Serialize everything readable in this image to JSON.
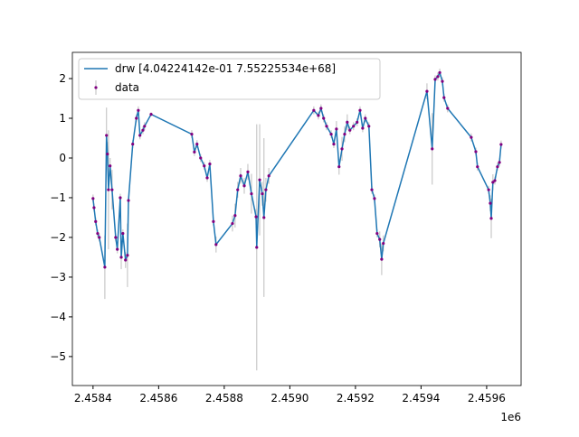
{
  "chart_data": {
    "type": "line",
    "x_offset_label": "1e6",
    "x": [
      2458400,
      2458403,
      2458408,
      2458414,
      2458419,
      2458436,
      2458441,
      2458444,
      2458447,
      2458452,
      2458458,
      2458469,
      2458474,
      2458483,
      2458486,
      2458491,
      2458499,
      2458505,
      2458508,
      2458521,
      2458532,
      2458538,
      2458543,
      2458552,
      2458557,
      2458577,
      2458701,
      2458709,
      2458717,
      2458728,
      2458739,
      2458748,
      2458756,
      2458767,
      2458775,
      2458825,
      2458833,
      2458841,
      2458850,
      2458861,
      2458872,
      2458883,
      2458897,
      2458899,
      2458908,
      2458916,
      2458921,
      2458927,
      2458936,
      2459073,
      2459087,
      2459095,
      2459103,
      2459112,
      2459126,
      2459134,
      2459142,
      2459150,
      2459159,
      2459167,
      2459175,
      2459183,
      2459194,
      2459205,
      2459214,
      2459222,
      2459230,
      2459241,
      2459250,
      2459258,
      2459266,
      2459274,
      2459280,
      2459285,
      2459418,
      2459434,
      2459443,
      2459451,
      2459457,
      2459465,
      2459470,
      2459481,
      2459553,
      2459567,
      2459572,
      2459606,
      2459611,
      2459614,
      2459619,
      2459625,
      2459633,
      2459639,
      2459644
    ],
    "series": [
      {
        "name": "drw [4.04224142e-01 7.55225534e+68]",
        "color": "#1f77b4",
        "values": [
          -1.02,
          -1.25,
          -1.6,
          -1.9,
          -2.0,
          -2.75,
          0.57,
          0.1,
          -0.8,
          -0.2,
          -0.8,
          -2.0,
          -2.3,
          -1.0,
          -2.5,
          -1.9,
          -2.57,
          -2.45,
          -1.07,
          0.35,
          1.0,
          1.2,
          0.57,
          0.7,
          0.8,
          1.1,
          0.6,
          0.15,
          0.35,
          0,
          -0.2,
          -0.5,
          -0.15,
          -1.6,
          -2.18,
          -1.65,
          -1.45,
          -0.8,
          -0.45,
          -0.7,
          -0.35,
          -0.9,
          -1.48,
          -2.25,
          -0.55,
          -0.9,
          -1.5,
          -0.8,
          -0.45,
          1.2,
          1.07,
          1.25,
          1.0,
          0.8,
          0.6,
          0.35,
          0.73,
          -0.22,
          0.23,
          0.6,
          0.9,
          0.7,
          0.8,
          0.9,
          1.2,
          0.75,
          1.0,
          0.8,
          -0.8,
          -1.02,
          -1.9,
          -2.05,
          -2.55,
          -2.15,
          1.68,
          0.23,
          1.98,
          2.05,
          2.15,
          1.93,
          1.52,
          1.25,
          0.52,
          0.16,
          -0.22,
          -0.8,
          -1.14,
          -1.52,
          -0.61,
          -0.57,
          -0.22,
          -0.11,
          0.34
        ]
      },
      {
        "name": "data",
        "color": "#800080",
        "error_color": "#c8c8c8",
        "values": [
          -1.02,
          -1.25,
          -1.6,
          -1.9,
          -2.0,
          -2.75,
          0.57,
          0.1,
          -0.8,
          -0.2,
          -0.8,
          -2.0,
          -2.3,
          -1.0,
          -2.5,
          -1.9,
          -2.57,
          -2.45,
          -1.07,
          0.35,
          1.0,
          1.2,
          0.57,
          0.7,
          0.8,
          1.1,
          0.6,
          0.15,
          0.35,
          0,
          -0.2,
          -0.5,
          -0.15,
          -1.6,
          -2.18,
          -1.65,
          -1.45,
          -0.8,
          -0.45,
          -0.7,
          -0.35,
          -0.9,
          -1.48,
          -2.25,
          -0.55,
          -0.9,
          -1.5,
          -0.8,
          -0.45,
          1.2,
          1.07,
          1.25,
          1.0,
          0.8,
          0.6,
          0.35,
          0.73,
          -0.22,
          0.23,
          0.6,
          0.9,
          0.7,
          0.8,
          0.9,
          1.2,
          0.75,
          1.0,
          0.8,
          -0.8,
          -1.02,
          -1.9,
          -2.05,
          -2.55,
          -2.15,
          1.68,
          0.23,
          1.98,
          2.05,
          2.15,
          1.93,
          1.52,
          1.25,
          0.52,
          0.16,
          -0.22,
          -0.8,
          -1.14,
          -1.52,
          -0.61,
          -0.57,
          -0.22,
          -0.11,
          0.34
        ],
        "errors": [
          0.1,
          0.1,
          0.1,
          0.1,
          0.1,
          0.8,
          0.7,
          0.3,
          1.5,
          0.2,
          0.5,
          0.1,
          0.1,
          0.1,
          0.3,
          0.1,
          0.2,
          0.8,
          0.1,
          0.1,
          0.1,
          0.1,
          0.1,
          0.1,
          0.1,
          0.05,
          0.1,
          0.1,
          0.1,
          0.1,
          0.1,
          0.1,
          0.1,
          0.1,
          0.2,
          0.2,
          0.3,
          0.2,
          0.2,
          0.2,
          0.2,
          0.5,
          0.2,
          3.1,
          1.4,
          0.3,
          2.0,
          0.3,
          0.2,
          0.1,
          0.1,
          0.1,
          0.1,
          0.1,
          0.1,
          0.1,
          0.2,
          0.2,
          0.3,
          0.2,
          0.2,
          0.1,
          0.1,
          0.1,
          0.1,
          0.1,
          0.1,
          0.1,
          0.1,
          0.1,
          0.1,
          0.2,
          0.4,
          0.2,
          0.2,
          0.9,
          0.1,
          0.1,
          0.1,
          0.1,
          0.1,
          0.1,
          0.1,
          0.1,
          0.1,
          0.1,
          0.2,
          0.5,
          0.2,
          0.1,
          0.1,
          0.1,
          0.1
        ]
      }
    ],
    "xlim": [
      2458337,
      2459705
    ],
    "ylim": [
      -5.73,
      2.66
    ],
    "xticks": [
      {
        "value": 2458400,
        "label": "2.4584"
      },
      {
        "value": 2458600,
        "label": "2.4586"
      },
      {
        "value": 2458800,
        "label": "2.4588"
      },
      {
        "value": 2459000,
        "label": "2.4590"
      },
      {
        "value": 2459200,
        "label": "2.4592"
      },
      {
        "value": 2459400,
        "label": "2.4594"
      },
      {
        "value": 2459600,
        "label": "2.4596"
      }
    ],
    "yticks": [
      {
        "value": -5,
        "label": "−5"
      },
      {
        "value": -4,
        "label": "−4"
      },
      {
        "value": -3,
        "label": "−3"
      },
      {
        "value": -2,
        "label": "−2"
      },
      {
        "value": -1,
        "label": "−1"
      },
      0,
      1,
      2
    ],
    "legend": "upper left"
  }
}
